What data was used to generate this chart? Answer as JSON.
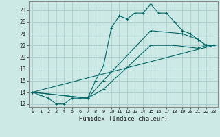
{
  "xlabel": "Humidex (Indice chaleur)",
  "background_color": "#cce9e5",
  "grid_color": "#aacccc",
  "line_color": "#006666",
  "xlim": [
    -0.5,
    23.5
  ],
  "ylim": [
    11.5,
    29.5
  ],
  "xticks": [
    0,
    1,
    2,
    3,
    4,
    5,
    6,
    7,
    8,
    9,
    10,
    11,
    12,
    13,
    14,
    15,
    16,
    17,
    18,
    19,
    20,
    21,
    22,
    23
  ],
  "yticks": [
    12,
    14,
    16,
    18,
    20,
    22,
    24,
    26,
    28
  ],
  "line1_x": [
    0,
    1,
    2,
    3,
    4,
    5,
    6,
    7,
    8,
    9,
    10,
    11,
    12,
    13,
    14,
    15,
    16,
    17,
    18,
    19,
    20,
    21,
    22,
    23
  ],
  "line1_y": [
    14,
    13.5,
    13,
    12,
    12,
    13,
    13,
    13,
    16,
    18.5,
    25,
    27,
    26.5,
    27.5,
    27.5,
    29,
    27.5,
    27.5,
    26,
    24.5,
    24,
    23,
    22,
    22
  ],
  "line2_x": [
    0,
    23
  ],
  "line2_y": [
    14,
    22
  ],
  "line3_x": [
    0,
    7,
    9,
    15,
    19,
    21,
    22,
    23
  ],
  "line3_y": [
    14,
    13,
    16,
    24.5,
    24,
    23,
    22,
    22
  ],
  "line4_x": [
    0,
    7,
    9,
    15,
    18,
    21,
    22,
    23
  ],
  "line4_y": [
    14,
    13,
    14.5,
    22,
    22,
    21.5,
    22,
    22
  ]
}
